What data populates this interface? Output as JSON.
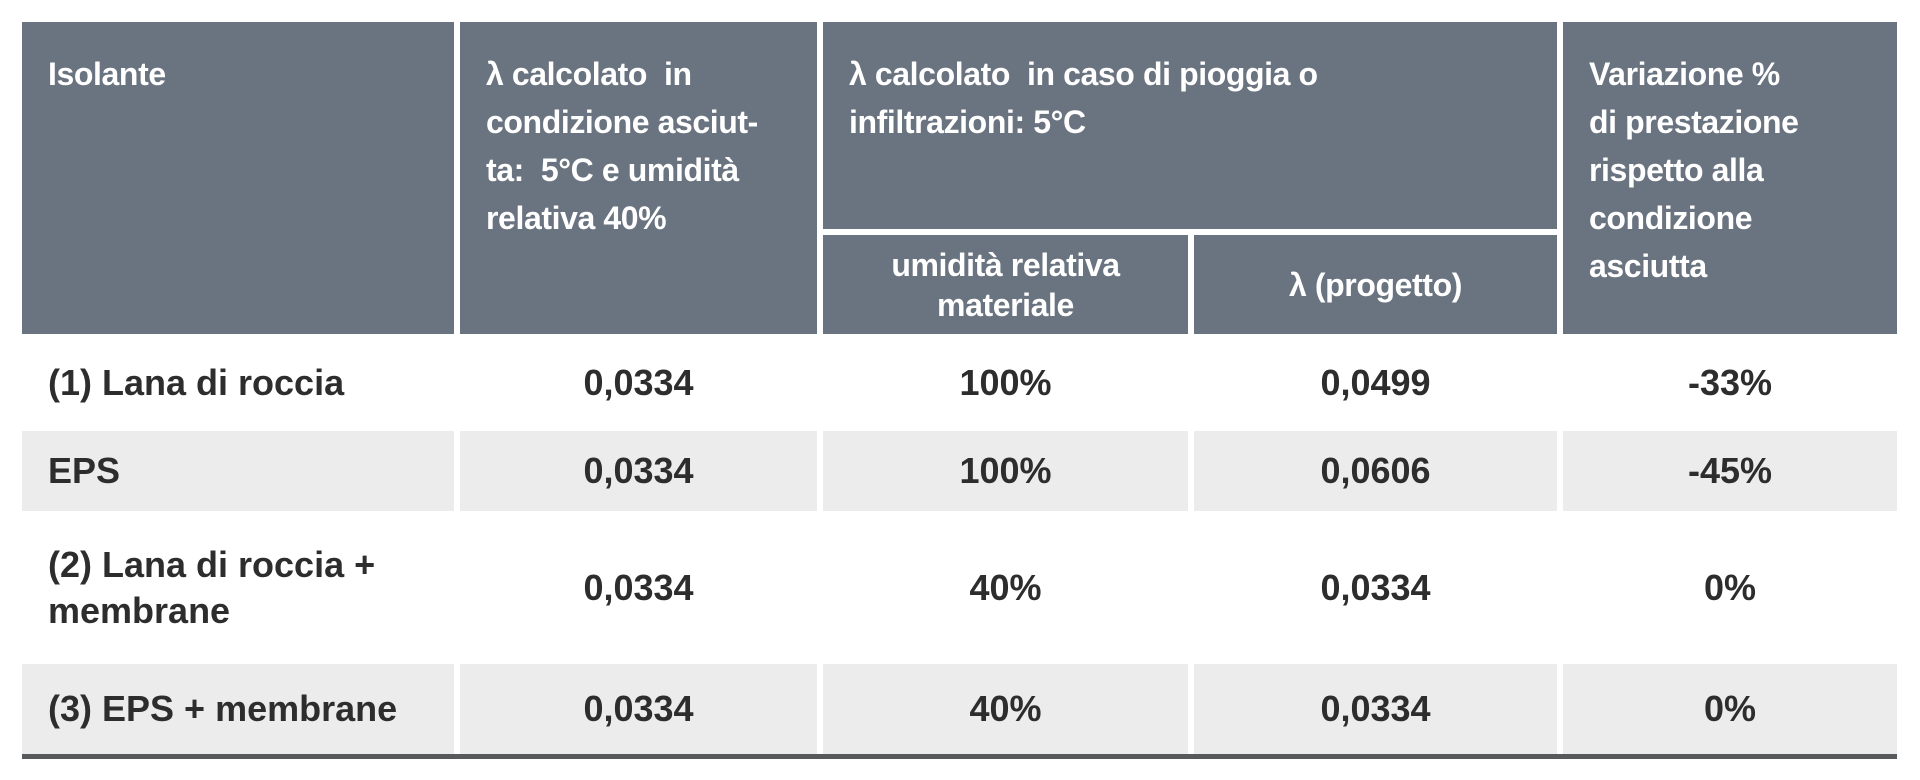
{
  "table": {
    "title_semantic": "Confronto prestazioni isolanti",
    "header": {
      "isolante": "Isolante",
      "dry": "λ calcolato  in\ncondizione asciut-\nta:  5°C e umidità\nrelativa 40%",
      "wet_group": "λ calcolato  in caso di pioggia o\ninfiltrazioni: 5°C",
      "wet_sub_humidity": "umidità relativa\nmateriale",
      "wet_sub_lambda": "λ (progetto)",
      "variation": "Variazione %\ndi prestazione\nrispetto alla\ncondizione\nasciutta"
    },
    "rows": [
      {
        "insulation": "(1) Lana di roccia",
        "lambda_dry": "0,0334",
        "humidity": "100%",
        "lambda_design": "0,0499",
        "variation": "-33%"
      },
      {
        "insulation": "EPS",
        "lambda_dry": "0,0334",
        "humidity": "100%",
        "lambda_design": "0,0606",
        "variation": "-45%"
      },
      {
        "insulation": "(2) Lana di roccia +\nmembrane",
        "lambda_dry": "0,0334",
        "humidity": "40%",
        "lambda_design": "0,0334",
        "variation": "0%"
      },
      {
        "insulation": "(3) EPS + membrane",
        "lambda_dry": "0,0334",
        "humidity": "40%",
        "lambda_design": "0,0334",
        "variation": "0%"
      }
    ],
    "colors": {
      "header_bg": "#6a7380",
      "header_text": "#ffffff",
      "row_bg": "#ffffff",
      "row_alt_bg": "#ececec",
      "body_text": "#2d2d2d",
      "bottom_border": "#58595b",
      "divider": "#ffffff"
    }
  }
}
